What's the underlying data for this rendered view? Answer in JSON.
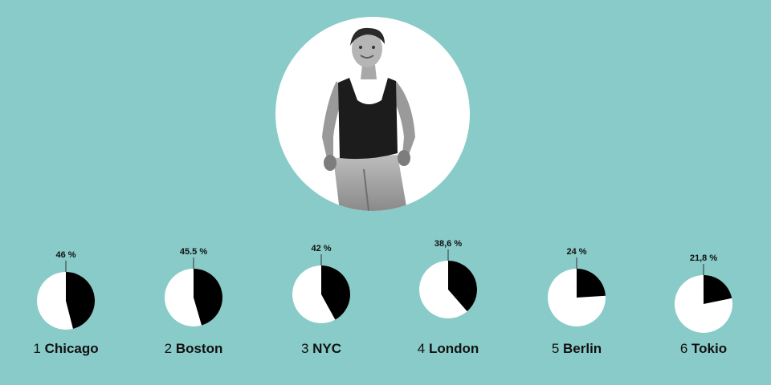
{
  "colors": {
    "background": "#88cbc8",
    "pie_share": "#000000",
    "pie_rest": "#ffffff",
    "text": "#111111"
  },
  "chart_data": {
    "type": "pie",
    "title": "",
    "legend": "none",
    "series": [
      {
        "rank": "1",
        "city": "Chicago",
        "label": "46 %",
        "value": 46.0
      },
      {
        "rank": "2",
        "city": "Boston",
        "label": "45.5 %",
        "value": 45.5
      },
      {
        "rank": "3",
        "city": "NYC",
        "label": "42 %",
        "value": 42.0
      },
      {
        "rank": "4",
        "city": "London",
        "label": "38,6 %",
        "value": 38.6
      },
      {
        "rank": "5",
        "city": "Berlin",
        "label": "24 %",
        "value": 24.0
      },
      {
        "rank": "6",
        "city": "Tokio",
        "label": "21,8 %",
        "value": 21.8
      }
    ]
  }
}
